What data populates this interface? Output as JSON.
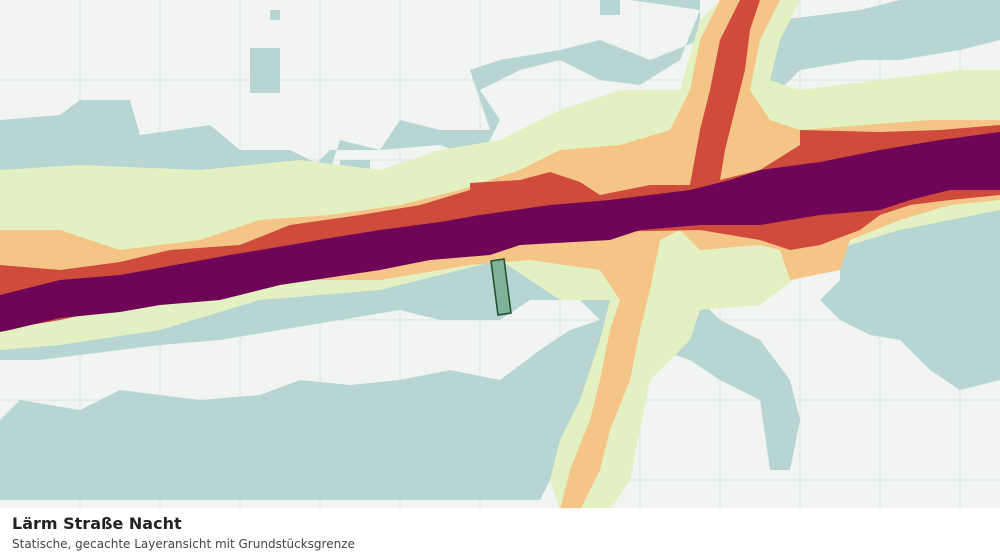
{
  "caption": {
    "title": "Lärm Straße Nacht",
    "subtitle": "Statische, gecachte Layeransicht mit Grundstücksgrenze"
  }
}
